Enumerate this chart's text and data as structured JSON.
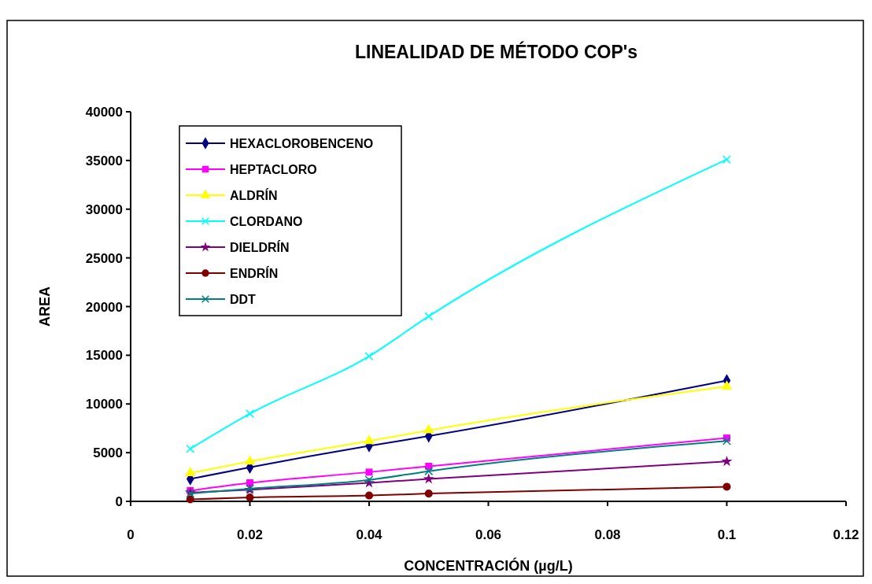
{
  "chart_data": {
    "type": "line",
    "title": "LINEALIDAD DE MÉTODO COP's",
    "xlabel": "CONCENTRACIÓN (µg/L)",
    "ylabel": "AREA",
    "x": [
      0.01,
      0.02,
      0.04,
      0.05,
      0.1
    ],
    "xlim": [
      0,
      0.12
    ],
    "xticks": [
      0,
      0.02,
      0.04,
      0.06,
      0.08,
      0.1,
      0.12
    ],
    "ylim": [
      0,
      40000
    ],
    "yticks": [
      0,
      5000,
      10000,
      15000,
      20000,
      25000,
      30000,
      35000,
      40000
    ],
    "grid": false,
    "legend": "top left",
    "series": [
      {
        "name": "HEXACLOROBENCENO",
        "color": "#000080",
        "marker": "diamond",
        "values": [
          2300,
          3500,
          5700,
          6700,
          12400
        ]
      },
      {
        "name": "HEPTACLORO",
        "color": "#ff00ff",
        "marker": "square",
        "values": [
          1100,
          1900,
          3000,
          3600,
          6500
        ]
      },
      {
        "name": "ALDRÍN",
        "color": "#ffff00",
        "marker": "triangle",
        "values": [
          2900,
          4100,
          6200,
          7300,
          11800
        ]
      },
      {
        "name": "CLORDANO",
        "color": "#00ffff",
        "marker": "cross",
        "values": [
          5400,
          9000,
          14900,
          19000,
          35100
        ]
      },
      {
        "name": "DIELDRÍN",
        "color": "#800080",
        "marker": "star",
        "values": [
          900,
          1200,
          1900,
          2300,
          4100
        ]
      },
      {
        "name": "ENDRÍN",
        "color": "#800000",
        "marker": "circle",
        "values": [
          200,
          400,
          600,
          800,
          1500
        ]
      },
      {
        "name": "DDT",
        "color": "#008080",
        "marker": "cross",
        "values": [
          800,
          1300,
          2200,
          3100,
          6200
        ]
      }
    ]
  }
}
